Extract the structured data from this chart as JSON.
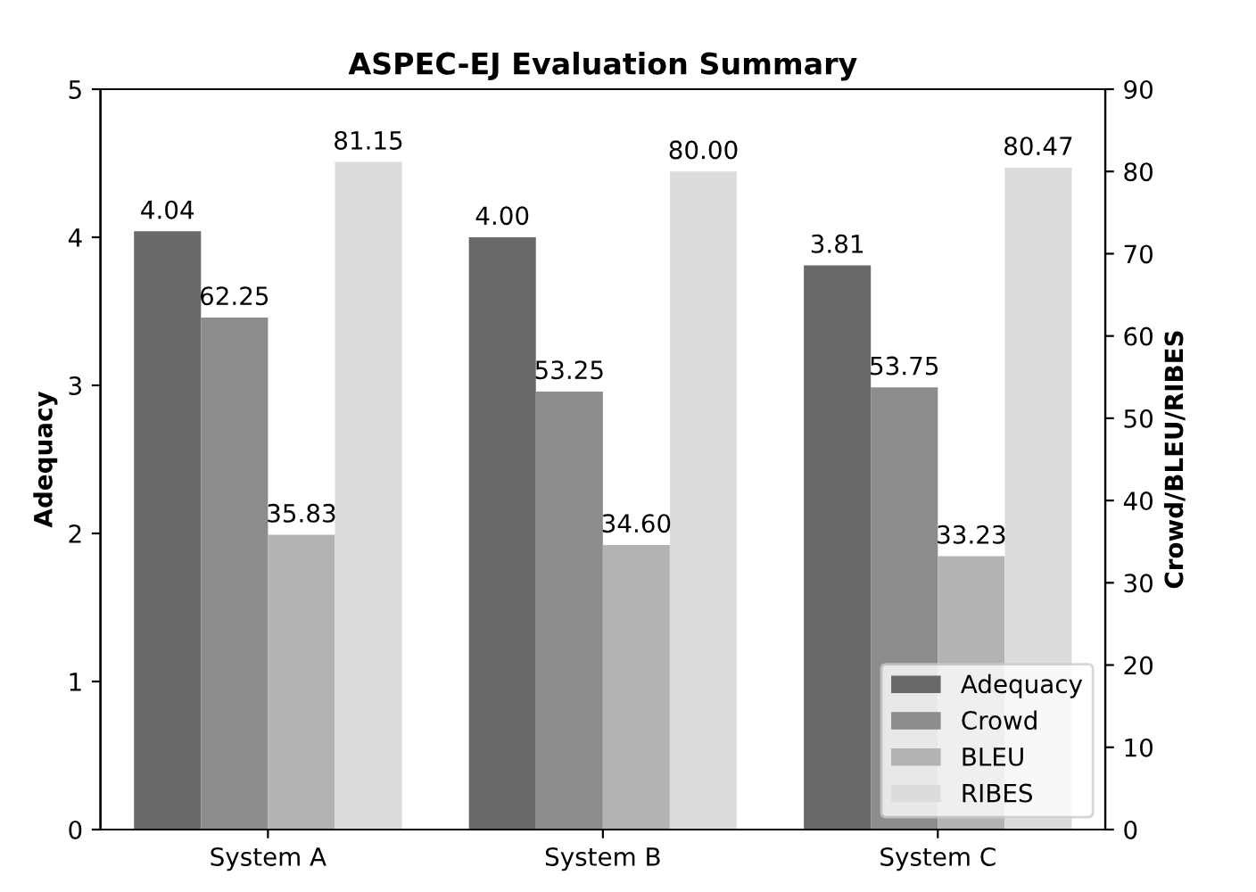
{
  "chart_data": {
    "type": "bar",
    "title": "ASPEC-EJ Evaluation Summary",
    "ylabel": "Adequacy",
    "y2label": "Crowd/BLEU/RIBES",
    "categories": [
      "System A",
      "System B",
      "System C"
    ],
    "series": [
      {
        "name": "Adequacy",
        "color": "#696969",
        "values": [
          4.04,
          4.0,
          3.81
        ],
        "value_labels": [
          "4.04",
          "4.00",
          "3.81"
        ]
      },
      {
        "name": "Crowd",
        "color": "#8c8c8c",
        "axis": "y2",
        "values": [
          62.25,
          53.25,
          53.75
        ],
        "value_labels": [
          "62.25",
          "53.25",
          "53.75"
        ]
      },
      {
        "name": "BLEU",
        "color": "#b3b3b3",
        "axis": "y2",
        "values": [
          35.83,
          34.6,
          33.23
        ],
        "value_labels": [
          "35.83",
          "34.60",
          "33.23"
        ]
      },
      {
        "name": "RIBES",
        "color": "#dcdcdc",
        "axis": "y2",
        "values": [
          81.15,
          80.0,
          80.47
        ],
        "value_labels": [
          "81.15",
          "80.00",
          "80.47"
        ]
      }
    ],
    "ylim": [
      0,
      5
    ],
    "yticks": [
      0,
      1,
      2,
      3,
      4,
      5
    ],
    "y2lim": [
      0,
      90
    ],
    "y2ticks": [
      0,
      10,
      20,
      30,
      40,
      50,
      60,
      70,
      80,
      90
    ],
    "legend": "bottom right",
    "grid": false
  }
}
